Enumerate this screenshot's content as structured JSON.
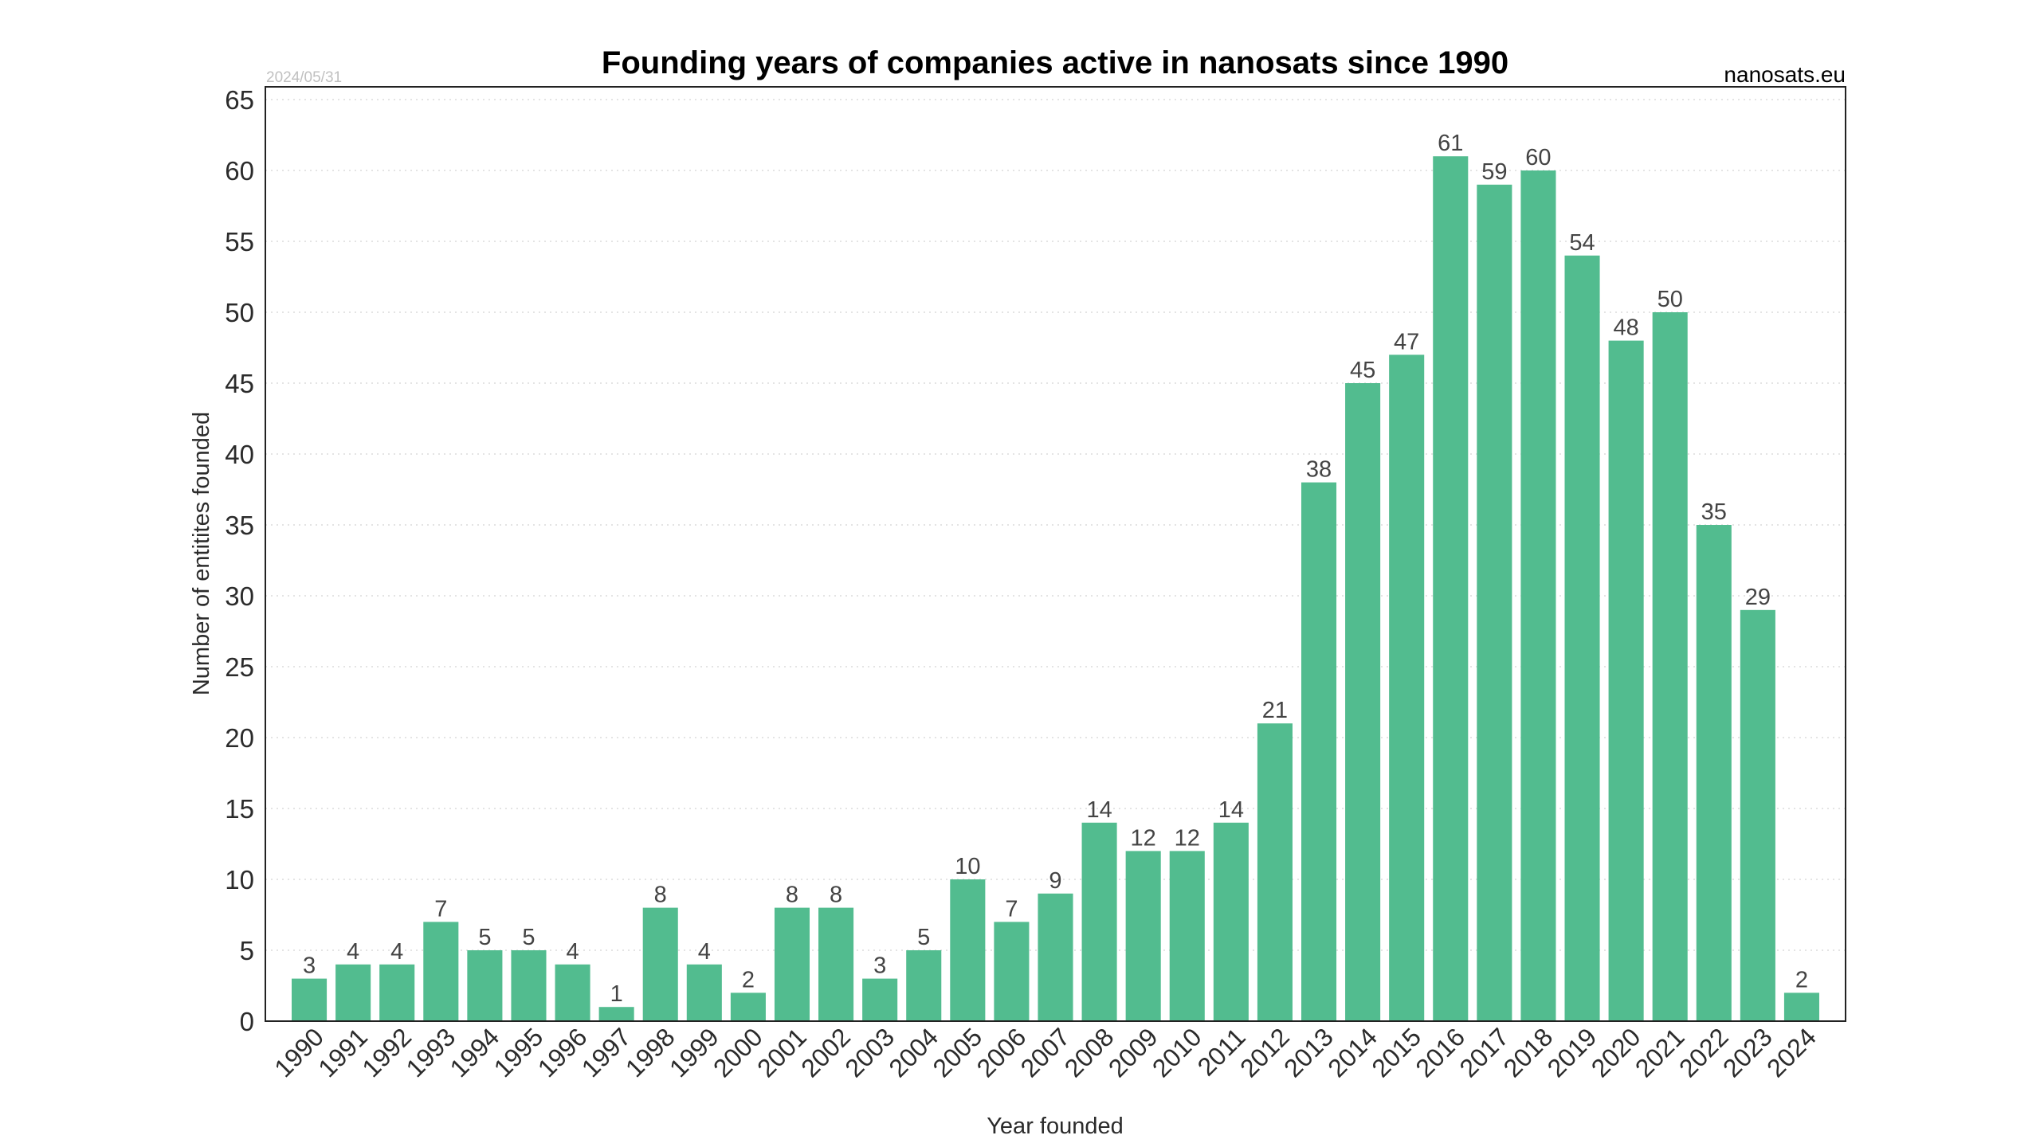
{
  "chart_data": {
    "type": "bar",
    "title": "Founding years of companies active in nanosats since 1990",
    "source_label": "nanosats.eu",
    "date_label": "2024/05/31",
    "xlabel": "Year founded",
    "ylabel": "Number of entitites founded",
    "ylim": [
      0,
      65.9
    ],
    "yticks": [
      0,
      5,
      10,
      15,
      20,
      25,
      30,
      35,
      40,
      45,
      50,
      55,
      60,
      65
    ],
    "grid": true,
    "bar_color": "#52bc8f",
    "categories": [
      "1990",
      "1991",
      "1992",
      "1993",
      "1994",
      "1995",
      "1996",
      "1997",
      "1998",
      "1999",
      "2000",
      "2001",
      "2002",
      "2003",
      "2004",
      "2005",
      "2006",
      "2007",
      "2008",
      "2009",
      "2010",
      "2011",
      "2012",
      "2013",
      "2014",
      "2015",
      "2016",
      "2017",
      "2018",
      "2019",
      "2020",
      "2021",
      "2022",
      "2023",
      "2024"
    ],
    "values": [
      3,
      4,
      4,
      7,
      5,
      5,
      4,
      1,
      8,
      4,
      2,
      8,
      8,
      3,
      5,
      10,
      7,
      9,
      14,
      12,
      12,
      14,
      21,
      38,
      45,
      47,
      61,
      59,
      60,
      54,
      48,
      50,
      35,
      29,
      2
    ]
  }
}
